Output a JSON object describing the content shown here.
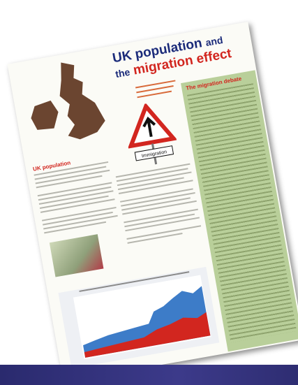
{
  "article": {
    "title_line1": "UK population",
    "title_line1b": "and",
    "title_line2a": "the",
    "title_line2b": "migration effect",
    "sign_label": "Immigration",
    "section_heading": "UK population",
    "sidebar_heading": "The migration debate"
  }
}
